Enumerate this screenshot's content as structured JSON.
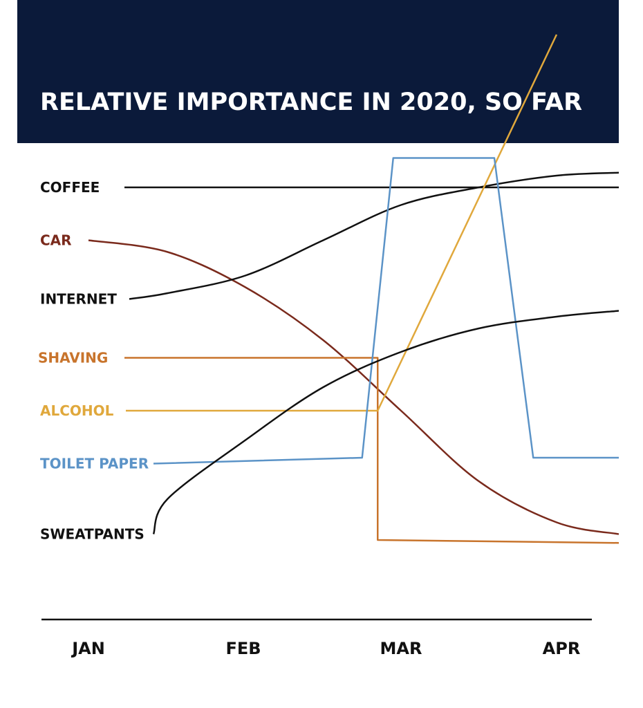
{
  "title": "RELATIVE IMPORTANCE IN 2020, SO FAR",
  "chart_data": {
    "type": "line",
    "title": "RELATIVE IMPORTANCE IN 2020, SO FAR",
    "x_ticks": [
      "JAN",
      "FEB",
      "MAR",
      "APR"
    ],
    "y_axis": "relative importance (unlabeled)",
    "series": [
      {
        "name": "COFFEE",
        "color": "#111111",
        "points": [
          [
            0,
            7.4
          ],
          [
            3.4,
            7.4
          ]
        ]
      },
      {
        "name": "CAR",
        "color": "#7a2a1c",
        "points": [
          [
            0,
            6.5
          ],
          [
            0.5,
            6.3
          ],
          [
            1.0,
            5.7
          ],
          [
            1.5,
            4.8
          ],
          [
            2.0,
            3.6
          ],
          [
            2.5,
            2.4
          ],
          [
            3.0,
            1.7
          ],
          [
            3.4,
            1.5
          ]
        ]
      },
      {
        "name": "INTERNET",
        "color": "#111111",
        "points": [
          [
            0,
            5.5
          ],
          [
            0.5,
            5.6
          ],
          [
            1.0,
            5.9
          ],
          [
            1.5,
            6.5
          ],
          [
            2.0,
            7.1
          ],
          [
            2.5,
            7.4
          ],
          [
            3.0,
            7.6
          ],
          [
            3.4,
            7.65
          ]
        ]
      },
      {
        "name": "SHAVING",
        "color": "#c8742c",
        "points": [
          [
            0,
            4.5
          ],
          [
            1.85,
            4.5
          ],
          [
            1.85,
            1.4
          ],
          [
            3.4,
            1.35
          ]
        ]
      },
      {
        "name": "ALCOHOL",
        "color": "#e0a83c",
        "points": [
          [
            0,
            3.6
          ],
          [
            1.85,
            3.6
          ],
          [
            3.0,
            10.0
          ]
        ]
      },
      {
        "name": "TOILET PAPER",
        "color": "#5b93c7",
        "points": [
          [
            0,
            2.7
          ],
          [
            1.75,
            2.8
          ],
          [
            1.95,
            7.9
          ],
          [
            2.6,
            7.9
          ],
          [
            2.85,
            2.8
          ],
          [
            3.4,
            2.8
          ]
        ]
      },
      {
        "name": "SWEATPANTS",
        "color": "#111111",
        "points": [
          [
            0,
            1.5
          ],
          [
            0.5,
            2.1
          ],
          [
            1.0,
            3.1
          ],
          [
            1.5,
            4.0
          ],
          [
            2.0,
            4.6
          ],
          [
            2.5,
            5.0
          ],
          [
            3.0,
            5.2
          ],
          [
            3.4,
            5.3
          ]
        ]
      }
    ],
    "grid": false,
    "legend": "left (labels at line start)"
  }
}
